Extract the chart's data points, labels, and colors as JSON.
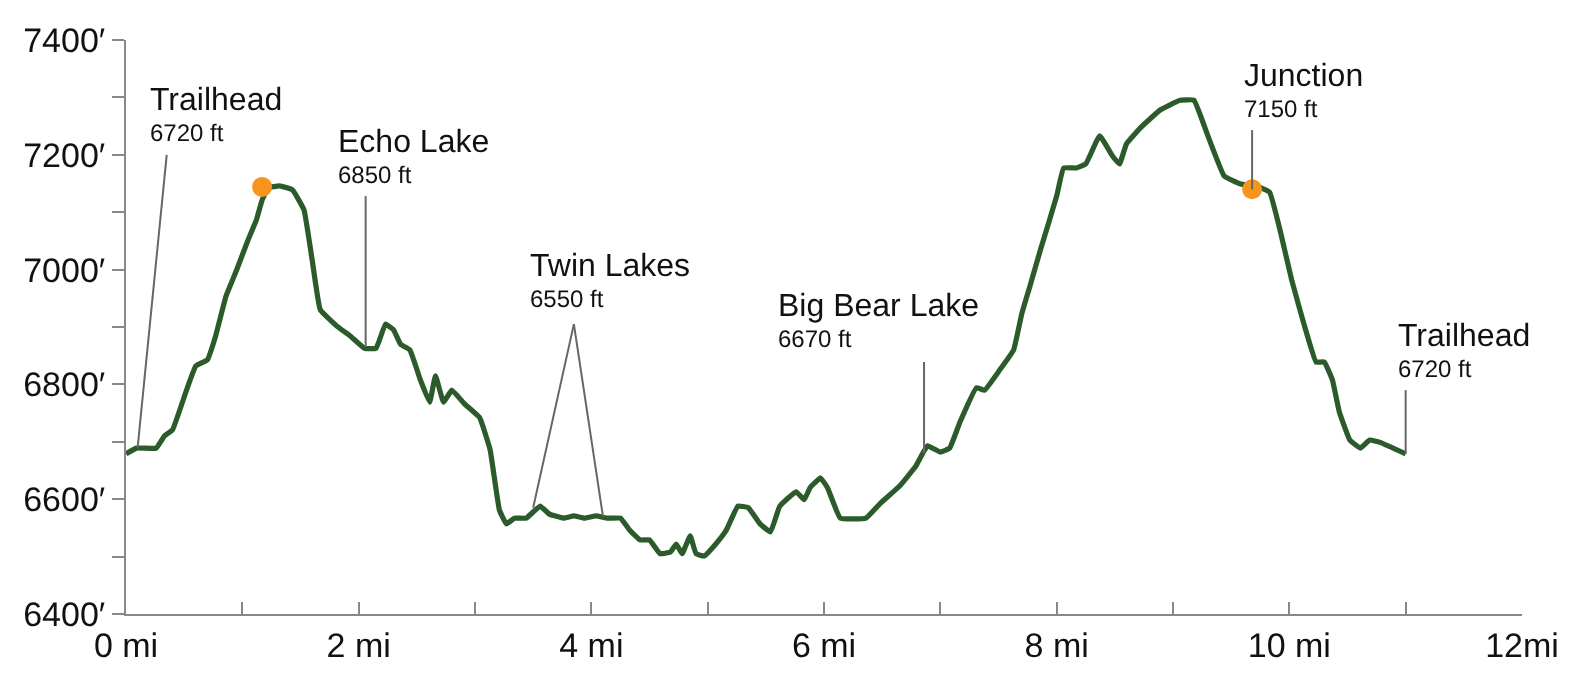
{
  "chart_data": {
    "type": "line",
    "x": [
      0.0,
      0.09,
      0.26,
      0.33,
      0.4,
      0.52,
      0.6,
      0.7,
      0.77,
      0.86,
      0.95,
      1.05,
      1.12,
      1.17,
      1.22,
      1.32,
      1.43,
      1.53,
      1.6,
      1.67,
      1.81,
      1.93,
      2.05,
      2.15,
      2.23,
      2.3,
      2.36,
      2.44,
      2.53,
      2.61,
      2.66,
      2.73,
      2.8,
      2.91,
      3.04,
      3.13,
      3.21,
      3.27,
      3.34,
      3.44,
      3.56,
      3.64,
      3.76,
      3.85,
      3.94,
      4.04,
      4.14,
      4.25,
      4.33,
      4.42,
      4.5,
      4.59,
      4.68,
      4.73,
      4.78,
      4.85,
      4.9,
      4.97,
      5.07,
      5.16,
      5.26,
      5.35,
      5.45,
      5.54,
      5.62,
      5.76,
      5.83,
      5.88,
      5.97,
      6.03,
      6.14,
      6.36,
      6.48,
      6.65,
      6.79,
      6.89,
      7.0,
      7.08,
      7.17,
      7.31,
      7.38,
      7.51,
      7.63,
      7.7,
      7.77,
      7.86,
      8.0,
      8.06,
      8.17,
      8.25,
      8.37,
      8.48,
      8.54,
      8.6,
      8.72,
      8.89,
      9.06,
      9.18,
      9.3,
      9.44,
      9.58,
      9.71,
      9.83,
      9.92,
      10.02,
      10.13,
      10.23,
      10.3,
      10.37,
      10.43,
      10.52,
      10.61,
      10.69,
      10.78,
      11.0
    ],
    "series": [
      {
        "color": "#2b5a2b",
        "marker": "none",
        "values": [
          6679,
          6689,
          6689,
          6710,
          6721,
          6790,
          6832,
          6843,
          6884,
          6954,
          6999,
          7052,
          7086,
          7121,
          7142,
          7146,
          7139,
          7104,
          7017,
          6930,
          6902,
          6884,
          6863,
          6863,
          6905,
          6895,
          6870,
          6860,
          6808,
          6769,
          6815,
          6769,
          6790,
          6766,
          6742,
          6686,
          6581,
          6557,
          6567,
          6567,
          6588,
          6574,
          6567,
          6571,
          6567,
          6571,
          6567,
          6567,
          6546,
          6529,
          6529,
          6505,
          6508,
          6522,
          6505,
          6536,
          6505,
          6501,
          6522,
          6546,
          6588,
          6585,
          6557,
          6543,
          6588,
          6613,
          6599,
          6620,
          6637,
          6620,
          6567,
          6567,
          6592,
          6623,
          6658,
          6693,
          6682,
          6689,
          6735,
          6794,
          6790,
          6825,
          6860,
          6923,
          6971,
          7034,
          7128,
          7177,
          7177,
          7184,
          7233,
          7198,
          7184,
          7219,
          7247,
          7278,
          7295,
          7295,
          7233,
          7163,
          7149,
          7146,
          7135,
          7069,
          6982,
          6902,
          6839,
          6839,
          6808,
          6752,
          6703,
          6689,
          6703,
          6699,
          6679
        ]
      },
      {
        "type": "scatter",
        "marker": "circle",
        "color": "#f7941d",
        "x": [
          1.17,
          9.68
        ],
        "values": [
          7144,
          7140
        ]
      }
    ],
    "line_style": "solid",
    "xlim": [
      0,
      12
    ],
    "ylim": [
      6400,
      7400
    ],
    "xticks": [
      {
        "value": 0,
        "label": "0 mi"
      },
      {
        "value": 1,
        "label": null
      },
      {
        "value": 2,
        "label": "2 mi"
      },
      {
        "value": 3,
        "label": null
      },
      {
        "value": 4,
        "label": "4 mi"
      },
      {
        "value": 5,
        "label": null
      },
      {
        "value": 6,
        "label": "6 mi"
      },
      {
        "value": 7,
        "label": null
      },
      {
        "value": 8,
        "label": "8 mi"
      },
      {
        "value": 9,
        "label": null
      },
      {
        "value": 10,
        "label": "10 mi"
      },
      {
        "value": 11,
        "label": null
      },
      {
        "value": 12,
        "label": "12mi"
      }
    ],
    "yticks": [
      {
        "value": 6400,
        "label": "6400′"
      },
      {
        "value": 6500,
        "label": null
      },
      {
        "value": 6600,
        "label": "6600′"
      },
      {
        "value": 6700,
        "label": null
      },
      {
        "value": 6800,
        "label": "6800′"
      },
      {
        "value": 6900,
        "label": null
      },
      {
        "value": 7000,
        "label": "7000′"
      },
      {
        "value": 7100,
        "label": null
      },
      {
        "value": 7200,
        "label": "7200′"
      },
      {
        "value": 7300,
        "label": null
      },
      {
        "value": 7400,
        "label": "7400′"
      }
    ],
    "annotations": [
      {
        "text": "Trailhead\n6720 ft",
        "x": 0.1,
        "y": 6690
      },
      {
        "text": "Echo Lake\n6850 ft",
        "x": 2.06,
        "y": 6865
      },
      {
        "text": "Twin Lakes\n6550 ft",
        "x": 3.5,
        "y": 6585
      },
      {
        "text": "Big Bear Lake\n6670 ft",
        "x": 6.86,
        "y": 6680
      },
      {
        "text": "Junction\n7150 ft",
        "x": 9.68,
        "y": 7140
      },
      {
        "text": "Trailhead\n6720 ft",
        "x": 11.0,
        "y": 6679
      }
    ]
  }
}
